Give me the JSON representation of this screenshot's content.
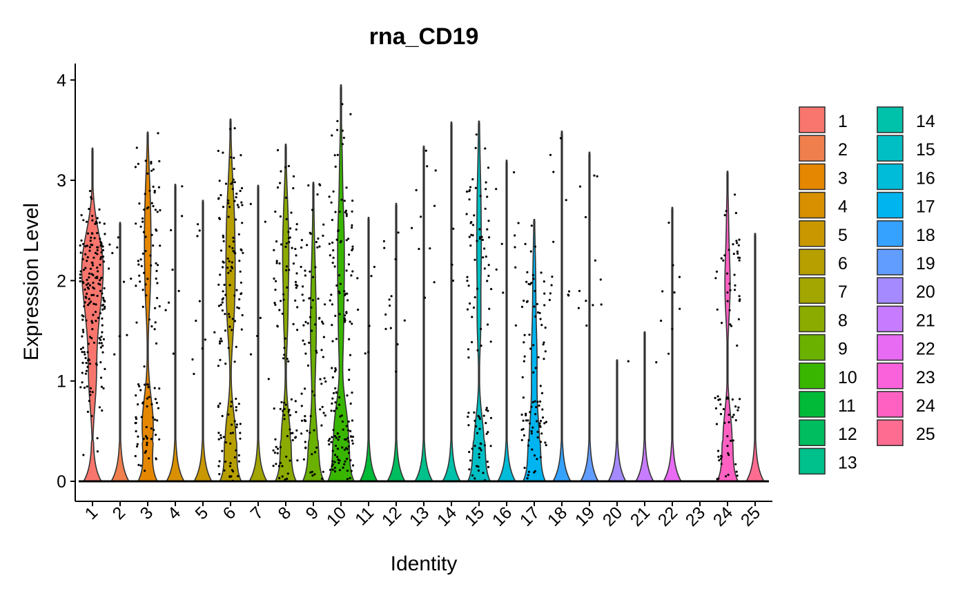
{
  "chart_data": {
    "type": "violin",
    "title": "rna_CD19",
    "xlabel": "Identity",
    "ylabel": "Expression Level",
    "ylim": [
      0,
      4
    ],
    "yticks": [
      "0",
      "1",
      "2",
      "3",
      "4"
    ],
    "grid": false,
    "legend": "right",
    "categories": [
      "1",
      "2",
      "3",
      "4",
      "5",
      "6",
      "7",
      "8",
      "9",
      "10",
      "11",
      "12",
      "13",
      "14",
      "15",
      "16",
      "17",
      "18",
      "19",
      "20",
      "21",
      "22",
      "23",
      "24",
      "25"
    ],
    "colors": [
      "#F8766D",
      "#F07F4E",
      "#E58700",
      "#D89000",
      "#C99800",
      "#B79F00",
      "#A3A500",
      "#8CAB00",
      "#6BB100",
      "#39B600",
      "#00BA38",
      "#00BD5F",
      "#00C08B",
      "#00C1A9",
      "#00BFC4",
      "#00BCD8",
      "#00B4F0",
      "#35A2FF",
      "#619CFF",
      "#A58AFF",
      "#C77CFF",
      "#E76BF3",
      "#FA62DB",
      "#FF61C3",
      "#FF6C91"
    ],
    "series": [
      {
        "name": "1",
        "max": 3.32,
        "cells": [
          [
            0.35,
            1.0
          ],
          [
            0.6,
            2.2
          ],
          [
            0.36,
            1.85
          ],
          [
            0.33,
            1.6
          ],
          [
            0.27,
            2.15
          ],
          [
            0.17,
            2.45
          ],
          [
            0.07,
            1.3
          ],
          [
            0.02,
            0.7
          ]
        ]
      },
      {
        "name": "2",
        "max": 2.58,
        "cells": [
          [
            0.02,
            1.7
          ],
          [
            0.01,
            2.5
          ],
          [
            0.01,
            2.0
          ]
        ]
      },
      {
        "name": "3",
        "max": 3.48,
        "cells": [
          [
            0.63,
            0.55
          ],
          [
            0.22,
            1.9
          ],
          [
            0.24,
            2.35
          ],
          [
            0.19,
            2.75
          ],
          [
            0.08,
            3.1
          ],
          [
            0.02,
            1.2
          ]
        ]
      },
      {
        "name": "4",
        "max": 2.96,
        "cells": [
          [
            0.02,
            2.25
          ],
          [
            0.01,
            1.4
          ],
          [
            0.01,
            2.9
          ]
        ]
      },
      {
        "name": "5",
        "max": 2.8,
        "cells": [
          [
            0.02,
            1.45
          ],
          [
            0.01,
            2.3
          ],
          [
            0.01,
            1.2
          ]
        ]
      },
      {
        "name": "6",
        "max": 3.61,
        "cells": [
          [
            0.61,
            0.4
          ],
          [
            0.28,
            1.6
          ],
          [
            0.36,
            2.05
          ],
          [
            0.3,
            2.5
          ],
          [
            0.17,
            2.85
          ],
          [
            0.06,
            3.2
          ]
        ]
      },
      {
        "name": "7",
        "max": 2.95,
        "cells": [
          [
            0.02,
            1.4
          ],
          [
            0.01,
            2.7
          ]
        ]
      },
      {
        "name": "8",
        "max": 3.36,
        "cells": [
          [
            0.52,
            0.4
          ],
          [
            0.2,
            1.6
          ],
          [
            0.25,
            2.15
          ],
          [
            0.18,
            2.55
          ],
          [
            0.07,
            2.9
          ]
        ]
      },
      {
        "name": "9",
        "max": 2.98,
        "cells": [
          [
            0.47,
            0.35
          ],
          [
            0.2,
            1.2
          ],
          [
            0.24,
            1.65
          ],
          [
            0.15,
            2.15
          ],
          [
            0.05,
            2.7
          ]
        ]
      },
      {
        "name": "10",
        "max": 3.95,
        "cells": [
          [
            0.45,
            0.15
          ],
          [
            0.63,
            0.55
          ],
          [
            0.24,
            1.45
          ],
          [
            0.28,
            2.0
          ],
          [
            0.28,
            2.5
          ],
          [
            0.14,
            3.1
          ],
          [
            0.03,
            3.6
          ]
        ]
      },
      {
        "name": "11",
        "max": 2.63,
        "cells": [
          [
            0.02,
            1.7
          ],
          [
            0.01,
            1.85
          ]
        ]
      },
      {
        "name": "12",
        "max": 2.77,
        "cells": [
          [
            0.04,
            1.4
          ],
          [
            0.03,
            1.8
          ],
          [
            0.02,
            2.4
          ]
        ]
      },
      {
        "name": "13",
        "max": 3.34,
        "cells": [
          [
            0.03,
            2.5
          ],
          [
            0.02,
            2.9
          ],
          [
            0.01,
            2.2
          ]
        ]
      },
      {
        "name": "14",
        "max": 3.58,
        "cells": [
          [
            0.01,
            2.2
          ],
          [
            0.01,
            3.5
          ]
        ]
      },
      {
        "name": "15",
        "max": 3.59,
        "cells": [
          [
            0.58,
            0.35
          ],
          [
            0.2,
            1.6
          ],
          [
            0.22,
            2.25
          ],
          [
            0.18,
            2.8
          ],
          [
            0.07,
            3.35
          ]
        ]
      },
      {
        "name": "16",
        "max": 3.2,
        "cells": [
          [
            0.03,
            1.9
          ],
          [
            0.02,
            2.5
          ],
          [
            0.01,
            3.0
          ]
        ]
      },
      {
        "name": "17",
        "max": 2.61,
        "cells": [
          [
            0.58,
            0.35
          ],
          [
            0.18,
            0.95
          ],
          [
            0.22,
            1.35
          ],
          [
            0.14,
            1.95
          ],
          [
            0.05,
            2.4
          ]
        ]
      },
      {
        "name": "18",
        "max": 3.49,
        "cells": [
          [
            0.03,
            1.6
          ],
          [
            0.03,
            2.2
          ],
          [
            0.02,
            3.0
          ]
        ]
      },
      {
        "name": "19",
        "max": 3.28,
        "cells": [
          [
            0.03,
            1.6
          ],
          [
            0.03,
            2.1
          ],
          [
            0.02,
            2.7
          ]
        ]
      },
      {
        "name": "20",
        "max": 1.21,
        "cells": [
          [
            0.01,
            1.1
          ]
        ]
      },
      {
        "name": "21",
        "max": 1.49,
        "cells": [
          [
            0.01,
            1.3
          ]
        ]
      },
      {
        "name": "22",
        "max": 2.73,
        "cells": [
          [
            0.02,
            1.5
          ],
          [
            0.02,
            2.1
          ],
          [
            0.01,
            2.5
          ]
        ]
      },
      {
        "name": "23",
        "max": 0.0,
        "cells": []
      },
      {
        "name": "24",
        "max": 3.09,
        "cells": [
          [
            0.52,
            0.4
          ],
          [
            0.14,
            1.8
          ],
          [
            0.18,
            2.05
          ],
          [
            0.1,
            2.6
          ]
        ]
      },
      {
        "name": "25",
        "max": 2.47,
        "cells": []
      }
    ]
  }
}
